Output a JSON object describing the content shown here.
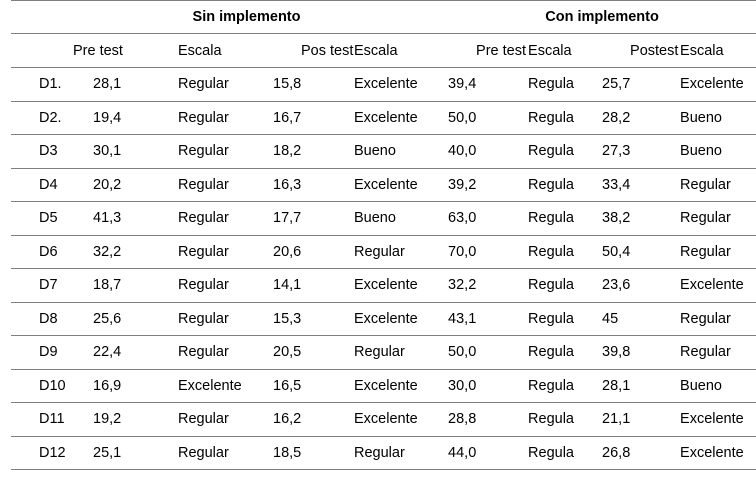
{
  "group_headers": {
    "sin": "Sin implemento",
    "con": "Con implemento"
  },
  "column_headers": [
    "",
    "Pre test",
    "Escala",
    "Pos test",
    "Escala",
    "Pre test",
    "Escala",
    "Postest",
    "Escala"
  ],
  "rows": [
    [
      "D1.",
      "28,1",
      "Regular",
      "15,8",
      "Excelente",
      "39,4",
      "Regula",
      "25,7",
      "Excelente"
    ],
    [
      "D2.",
      "19,4",
      "Regular",
      "16,7",
      "Excelente",
      "50,0",
      "Regula",
      "28,2",
      "Bueno"
    ],
    [
      "D3",
      "30,1",
      "Regular",
      "18,2",
      "Bueno",
      "40,0",
      "Regula",
      "27,3",
      "Bueno"
    ],
    [
      "D4",
      "20,2",
      "Regular",
      "16,3",
      "Excelente",
      "39,2",
      "Regula",
      "33,4",
      "Regular"
    ],
    [
      "D5",
      "41,3",
      "Regular",
      "17,7",
      "Bueno",
      "63,0",
      "Regula",
      "38,2",
      "Regular"
    ],
    [
      "D6",
      "32,2",
      "Regular",
      "20,6",
      "Regular",
      "70,0",
      "Regula",
      "50,4",
      "Regular"
    ],
    [
      "D7",
      "18,7",
      "Regular",
      "14,1",
      "Excelente",
      "32,2",
      "Regula",
      "23,6",
      "Excelente"
    ],
    [
      "D8",
      "25,6",
      "Regular",
      "15,3",
      "Excelente",
      "43,1",
      "Regula",
      "45",
      "Regular"
    ],
    [
      "D9",
      "22,4",
      "Regular",
      "20,5",
      "Regular",
      "50,0",
      "Regula",
      "39,8",
      "Regular"
    ],
    [
      "D10",
      "16,9",
      "Excelente",
      "16,5",
      "Excelente",
      "30,0",
      "Regula",
      "28,1",
      "Bueno"
    ],
    [
      "D11",
      "19,2",
      "Regular",
      "16,2",
      "Excelente",
      "28,8",
      "Regula",
      "21,1",
      "Excelente"
    ],
    [
      "D12",
      "25,1",
      "Regular",
      "18,5",
      "Regular",
      "44,0",
      "Regula",
      "26,8",
      "Excelente"
    ]
  ]
}
